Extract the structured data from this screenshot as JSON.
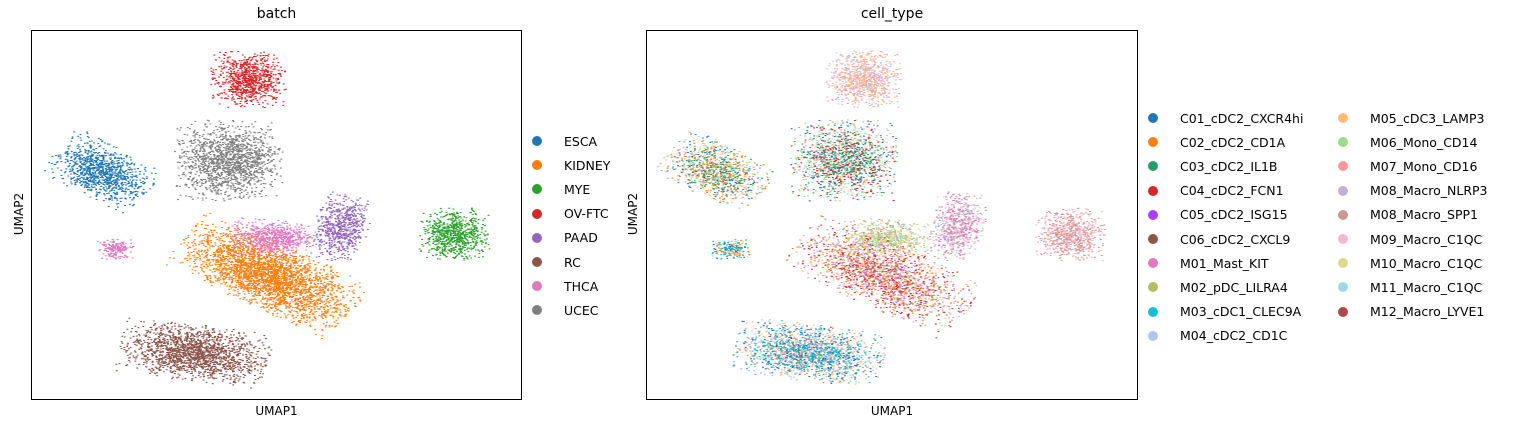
{
  "chart_data": [
    {
      "type": "scatter",
      "title": "batch",
      "xlabel": "UMAP1",
      "ylabel": "UMAP2",
      "grid": false,
      "legend_placement": "right",
      "series": [
        {
          "name": "ESCA",
          "color": "#1f77b4"
        },
        {
          "name": "KIDNEY",
          "color": "#ff7f0e"
        },
        {
          "name": "MYE",
          "color": "#2ca02c"
        },
        {
          "name": "OV-FTC",
          "color": "#d62728"
        },
        {
          "name": "PAAD",
          "color": "#9467bd"
        },
        {
          "name": "RC",
          "color": "#8c564b"
        },
        {
          "name": "THCA",
          "color": "#e377c2"
        },
        {
          "name": "UCEC",
          "color": "#7f7f7f"
        }
      ]
    },
    {
      "type": "scatter",
      "title": "cell_type",
      "xlabel": "UMAP1",
      "ylabel": "UMAP2",
      "grid": false,
      "legend_placement": "right",
      "series": [
        {
          "name": "C01_cDC2_CXCR4hi",
          "color": "#1f77b4"
        },
        {
          "name": "C02_cDC2_CD1A",
          "color": "#ff7f0e"
        },
        {
          "name": "C03_cDC2_IL1B",
          "color": "#279e68"
        },
        {
          "name": "C04_cDC2_FCN1",
          "color": "#d62728"
        },
        {
          "name": "C05_cDC2_ISG15",
          "color": "#aa40fc"
        },
        {
          "name": "C06_cDC2_CXCL9",
          "color": "#8c564b"
        },
        {
          "name": "M01_Mast_KIT",
          "color": "#e377c2"
        },
        {
          "name": "M02_pDC_LILRA4",
          "color": "#b5bd61"
        },
        {
          "name": "M03_cDC1_CLEC9A",
          "color": "#17becf"
        },
        {
          "name": "M04_cDC2_CD1C",
          "color": "#aec7e8"
        },
        {
          "name": "M05_cDC3_LAMP3",
          "color": "#ffbb78"
        },
        {
          "name": "M06_Mono_CD14",
          "color": "#98df8a"
        },
        {
          "name": "M07_Mono_CD16",
          "color": "#ff9896"
        },
        {
          "name": "M08_Macro_NLRP3",
          "color": "#c5b0d5"
        },
        {
          "name": "M08_Macro_SPP1",
          "color": "#c49c94"
        },
        {
          "name": "M09_Macro_C1QC",
          "color": "#f7b6d2"
        },
        {
          "name": "M10_Macro_C1QC",
          "color": "#dbdb8d"
        },
        {
          "name": "M11_Macro_C1QC",
          "color": "#9edae5"
        },
        {
          "name": "M12_Macro_LYVE1",
          "color": "#ad494a"
        }
      ]
    }
  ]
}
